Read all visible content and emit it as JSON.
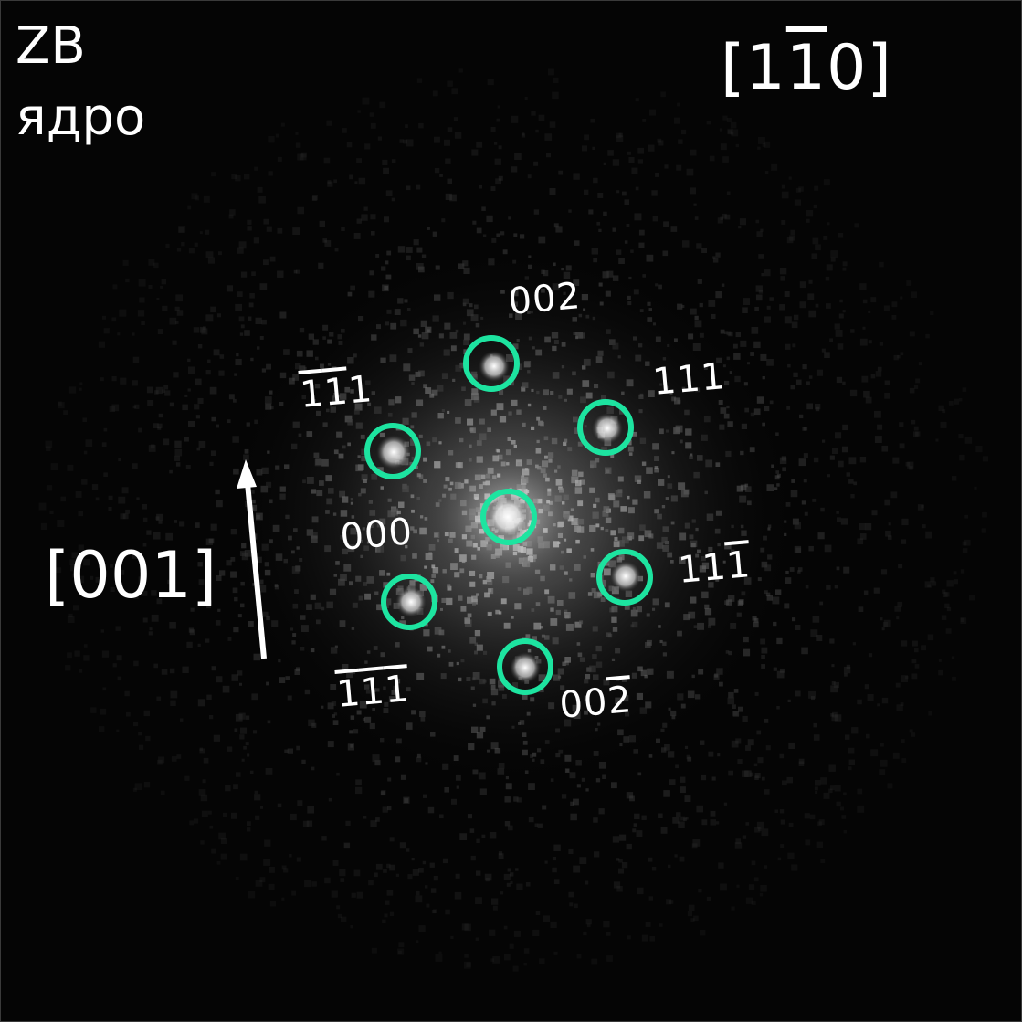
{
  "phase_label": "ZB",
  "region_label": "ядро",
  "zone_axis": {
    "open": "[",
    "h": "1",
    "k": "1",
    "l": "0",
    "close": "]"
  },
  "direction_label": "[001]",
  "spot_labels": {
    "s002": "002",
    "s111": "111",
    "s11m1": {
      "a": "11",
      "b": "1"
    },
    "s00m2": {
      "a": "00",
      "b": "2"
    },
    "sm1m1m1": {
      "a": "1",
      "b": "1",
      "c": "1"
    },
    "s000": "000",
    "sm1m11": {
      "a": "1",
      "b": "1",
      "c": "1"
    }
  },
  "colors": {
    "background": "#000000",
    "marker": "#1de4a0",
    "text": "#ffffff"
  }
}
